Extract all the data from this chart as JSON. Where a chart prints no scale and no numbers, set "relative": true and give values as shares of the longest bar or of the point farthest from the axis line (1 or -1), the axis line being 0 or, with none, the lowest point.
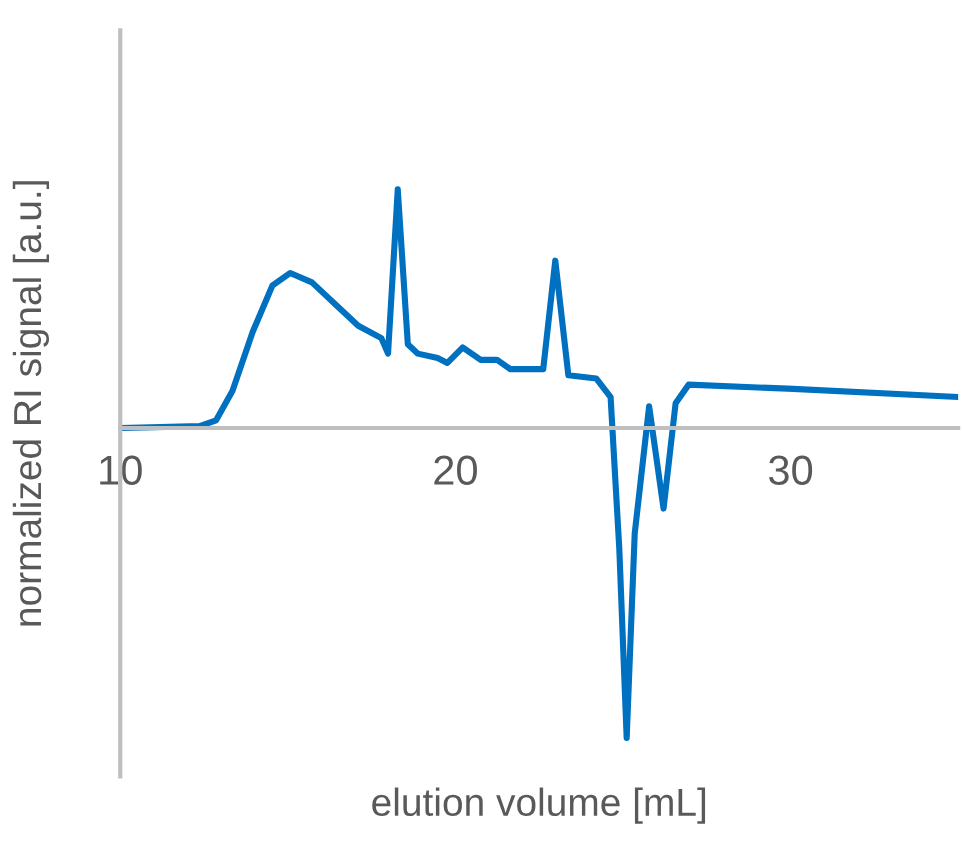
{
  "chart_data": {
    "type": "line",
    "xlabel": "elution volume [mL]",
    "ylabel": "normalized RI signal [a.u.]",
    "relative": true,
    "xlim": [
      10,
      35
    ],
    "xticks": [
      10,
      20,
      30
    ],
    "grid": false,
    "series": [
      {
        "color": "#0070c0",
        "x": [
          10,
          12.37,
          12.86,
          13.35,
          13.95,
          14.54,
          15.07,
          15.72,
          16.51,
          17.1,
          17.79,
          17.99,
          18.28,
          18.58,
          18.88,
          19.47,
          19.76,
          20.22,
          20.75,
          21.24,
          21.64,
          22.43,
          22.62,
          22.98,
          23.37,
          24.2,
          24.63,
          24.89,
          25.11,
          25.35,
          25.78,
          26.21,
          26.57,
          26.96,
          29.92,
          35
        ],
        "values": [
          0,
          0.006,
          0.025,
          0.12,
          0.31,
          0.46,
          0.5,
          0.47,
          0.39,
          0.33,
          0.29,
          0.24,
          0.77,
          0.27,
          0.24,
          0.226,
          0.21,
          0.26,
          0.22,
          0.22,
          0.19,
          0.19,
          0.19,
          0.54,
          0.17,
          0.16,
          0.1,
          -0.39,
          -1,
          -0.34,
          0.07,
          -0.26,
          0.08,
          0.14,
          0.127,
          0.1
        ]
      }
    ]
  }
}
